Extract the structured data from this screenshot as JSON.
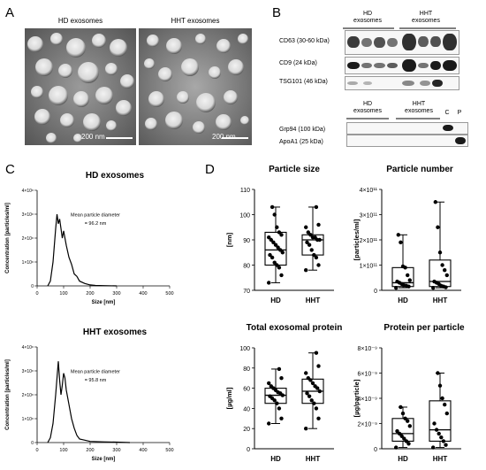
{
  "panels": {
    "a": "A",
    "b": "B",
    "c": "C",
    "d": "D"
  },
  "em": {
    "left_title": "HD exosomes",
    "right_title": "HHT exosomes",
    "scale_left": "200 nm",
    "scale_right": "200 nm"
  },
  "blot": {
    "group_hd": "HD\nexosomes",
    "group_hht": "HHT\nexosomes",
    "markers": [
      "CD63 (30-60 kDa)",
      "CD9 (24 kDa)",
      "TSG101 (46 kDa)"
    ],
    "lower_hd": "HD\nexosomes",
    "lower_hht": "HHT\nexosomes",
    "lower_c": "C",
    "lower_p": "P",
    "lower_markers": [
      "Grp94 (100 kDa)",
      "ApoA1 (25 kDa)"
    ]
  },
  "nta": {
    "hd_title": "HD exosomes",
    "hht_title": "HHT exosomes",
    "ylabel": "Concentration [particles/ml]",
    "xlabel": "Size [nm]",
    "hd_note_1": "Mean particle diameter",
    "hd_note_2": "= 96.2 nm",
    "hht_note_1": "Mean particle diameter",
    "hht_note_2": "= 95.8 nm",
    "xticks": [
      "0",
      "100",
      "200",
      "300",
      "400",
      "500"
    ],
    "yticks": [
      "0",
      "1×10⁸",
      "2×10⁸",
      "3×10⁸",
      "4×10⁸"
    ]
  },
  "chart_data": [
    {
      "type": "line",
      "title": "HD exosomes",
      "xlabel": "Size [nm]",
      "ylabel": "Concentration [particles/ml]",
      "xlim": [
        0,
        500
      ],
      "ylim": [
        0,
        400000000
      ],
      "x": [
        40,
        50,
        60,
        70,
        75,
        80,
        85,
        90,
        95,
        100,
        110,
        120,
        130,
        140,
        150,
        160,
        180,
        200,
        220,
        250,
        300
      ],
      "y": [
        0,
        20000000,
        100000000,
        240000000,
        300000000,
        260000000,
        280000000,
        240000000,
        200000000,
        230000000,
        170000000,
        120000000,
        90000000,
        50000000,
        40000000,
        20000000,
        10000000,
        4000000,
        2000000,
        1000000,
        0
      ]
    },
    {
      "type": "line",
      "title": "HHT exosomes",
      "xlabel": "Size [nm]",
      "ylabel": "Concentration [particles/ml]",
      "xlim": [
        0,
        500
      ],
      "ylim": [
        0,
        400000000
      ],
      "x": [
        40,
        50,
        60,
        70,
        80,
        85,
        90,
        95,
        100,
        105,
        110,
        120,
        130,
        140,
        150,
        160,
        180,
        200,
        250,
        300,
        350
      ],
      "y": [
        0,
        20000000,
        80000000,
        200000000,
        340000000,
        260000000,
        200000000,
        240000000,
        290000000,
        270000000,
        220000000,
        160000000,
        100000000,
        60000000,
        30000000,
        15000000,
        10000000,
        5000000,
        3000000,
        2000000,
        0
      ]
    },
    {
      "type": "box",
      "title": "Particle size",
      "ylabel": "[nm]",
      "categories": [
        "HD",
        "HHT"
      ],
      "ylim": [
        70,
        110
      ],
      "yticks": [
        "70",
        "80",
        "90",
        "100",
        "110"
      ],
      "boxes": [
        {
          "min": 73,
          "q1": 80,
          "median": 86,
          "q3": 93,
          "max": 103
        },
        {
          "min": 78,
          "q1": 84,
          "median": 90,
          "q3": 92,
          "max": 103
        }
      ],
      "points": [
        [
          73,
          76,
          79,
          80,
          81,
          83,
          84,
          85,
          86,
          87,
          88,
          89,
          90,
          91,
          92,
          93,
          95,
          100,
          103
        ],
        [
          78,
          80,
          83,
          84,
          86,
          88,
          89,
          90,
          90,
          91,
          91,
          92,
          93,
          95,
          96,
          103
        ]
      ]
    },
    {
      "type": "box",
      "title": "Particle number",
      "ylabel": "[particles/ml]",
      "categories": [
        "HD",
        "HHT"
      ],
      "ylim": [
        0,
        400000000000
      ],
      "yticks": [
        "0",
        "1×10¹¹",
        "2×10¹¹",
        "3×10¹¹",
        "4×10¹¹"
      ],
      "boxes": [
        {
          "min": 10000000000,
          "q1": 15000000000,
          "median": 30000000000,
          "q3": 90000000000,
          "max": 220000000000
        },
        {
          "min": 10000000000,
          "q1": 15000000000,
          "median": 35000000000,
          "q3": 120000000000,
          "max": 350000000000
        }
      ],
      "points": [
        [
          10000000000,
          15000000000,
          18000000000,
          20000000000,
          25000000000,
          30000000000,
          35000000000,
          40000000000,
          60000000000,
          90000000000,
          95000000000,
          190000000000,
          220000000000
        ],
        [
          10000000000,
          12000000000,
          15000000000,
          18000000000,
          25000000000,
          30000000000,
          35000000000,
          60000000000,
          80000000000,
          100000000000,
          150000000000,
          250000000000,
          350000000000
        ]
      ]
    },
    {
      "type": "box",
      "title": "Total exosomal protein",
      "ylabel": "[µg/ml]",
      "categories": [
        "HD",
        "HHT"
      ],
      "ylim": [
        0,
        100
      ],
      "yticks": [
        "0",
        "20",
        "40",
        "60",
        "80",
        "100"
      ],
      "boxes": [
        {
          "min": 25,
          "q1": 45,
          "median": 53,
          "q3": 60,
          "max": 79
        },
        {
          "min": 20,
          "q1": 45,
          "median": 57,
          "q3": 69,
          "max": 95
        }
      ],
      "points": [
        [
          25,
          30,
          40,
          45,
          48,
          50,
          52,
          53,
          55,
          56,
          58,
          60,
          62,
          65,
          70,
          79
        ],
        [
          20,
          30,
          40,
          45,
          48,
          52,
          55,
          57,
          60,
          62,
          65,
          68,
          70,
          75,
          82,
          95
        ]
      ]
    },
    {
      "type": "box",
      "title": "Protein per particle",
      "ylabel": "[µg/particle]",
      "categories": [
        "HD",
        "HHT"
      ],
      "ylim": [
        0,
        8e-09
      ],
      "yticks": [
        "0",
        "2×10⁻⁹",
        "4×10⁻⁹",
        "6×10⁻⁹",
        "8×10⁻⁹"
      ],
      "boxes": [
        {
          "min": 1e-10,
          "q1": 6e-10,
          "median": 1.2e-09,
          "q3": 2.4e-09,
          "max": 3.3e-09
        },
        {
          "min": 1e-10,
          "q1": 6e-10,
          "median": 1.5e-09,
          "q3": 3.8e-09,
          "max": 6e-09
        }
      ],
      "points": [
        [
          1e-10,
          4e-10,
          6e-10,
          8e-10,
          1e-09,
          1.2e-09,
          1.4e-09,
          1.8e-09,
          2.2e-09,
          2.4e-09,
          2.8e-09,
          3.3e-09
        ],
        [
          1e-10,
          3e-10,
          6e-10,
          9e-10,
          1.2e-09,
          1.5e-09,
          2e-09,
          2.8e-09,
          3.5e-09,
          4e-09,
          5e-09,
          6e-09
        ]
      ]
    }
  ],
  "colors": {
    "line": "#000000",
    "box": "#000000",
    "point": "#000000"
  }
}
